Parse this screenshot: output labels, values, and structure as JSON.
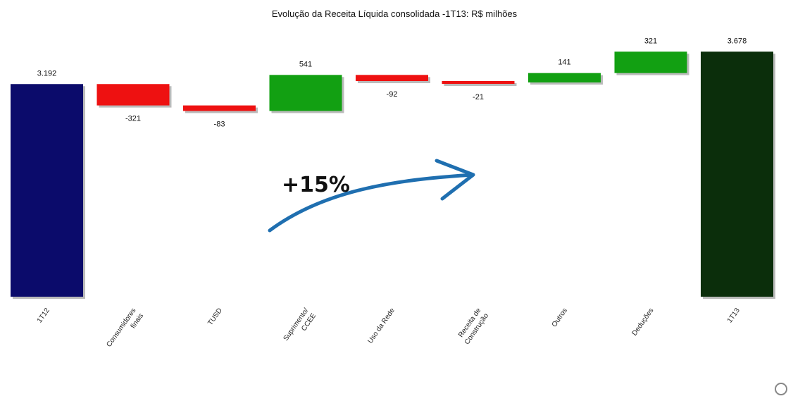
{
  "chart_data": {
    "type": "bar",
    "subtype": "waterfall",
    "title": "Evolução da Receita Líquida consolidada -1T13: R$ milhões",
    "xlabel": "",
    "ylabel": "",
    "grid": false,
    "legend": "none",
    "categories": [
      "1T12",
      "Consumidores finais",
      "TUSD",
      "Suprimento/ CCEE",
      "Uso da Rede",
      "Receita de Construção",
      "Outros",
      "Deduções",
      "1T13"
    ],
    "tick_lines": [
      [
        "1T12"
      ],
      [
        "Consumidores",
        "finais"
      ],
      [
        "TUSD"
      ],
      [
        "Suprimento/",
        "CCEE"
      ],
      [
        "Uso da Rede"
      ],
      [
        "Receita de",
        "Construção"
      ],
      [
        "Outros"
      ],
      [
        "Deduções"
      ],
      [
        "1T13"
      ]
    ],
    "values": [
      3192,
      -321,
      -83,
      541,
      -92,
      -21,
      141,
      321,
      3678
    ],
    "labels": [
      "3.192",
      "-321",
      "-83",
      "541",
      "-92",
      "-21",
      "141",
      "321",
      "3.678"
    ],
    "kinds": [
      "total",
      "delta",
      "delta",
      "delta",
      "delta",
      "delta",
      "delta",
      "delta",
      "total"
    ],
    "annotation": "+15%",
    "colors": {
      "total_start": "#0b0b6b",
      "total_end": "#0b2e0b",
      "increase": "#12a012",
      "decrease": "#ee1111",
      "arrow": "#1f6fb0"
    }
  }
}
